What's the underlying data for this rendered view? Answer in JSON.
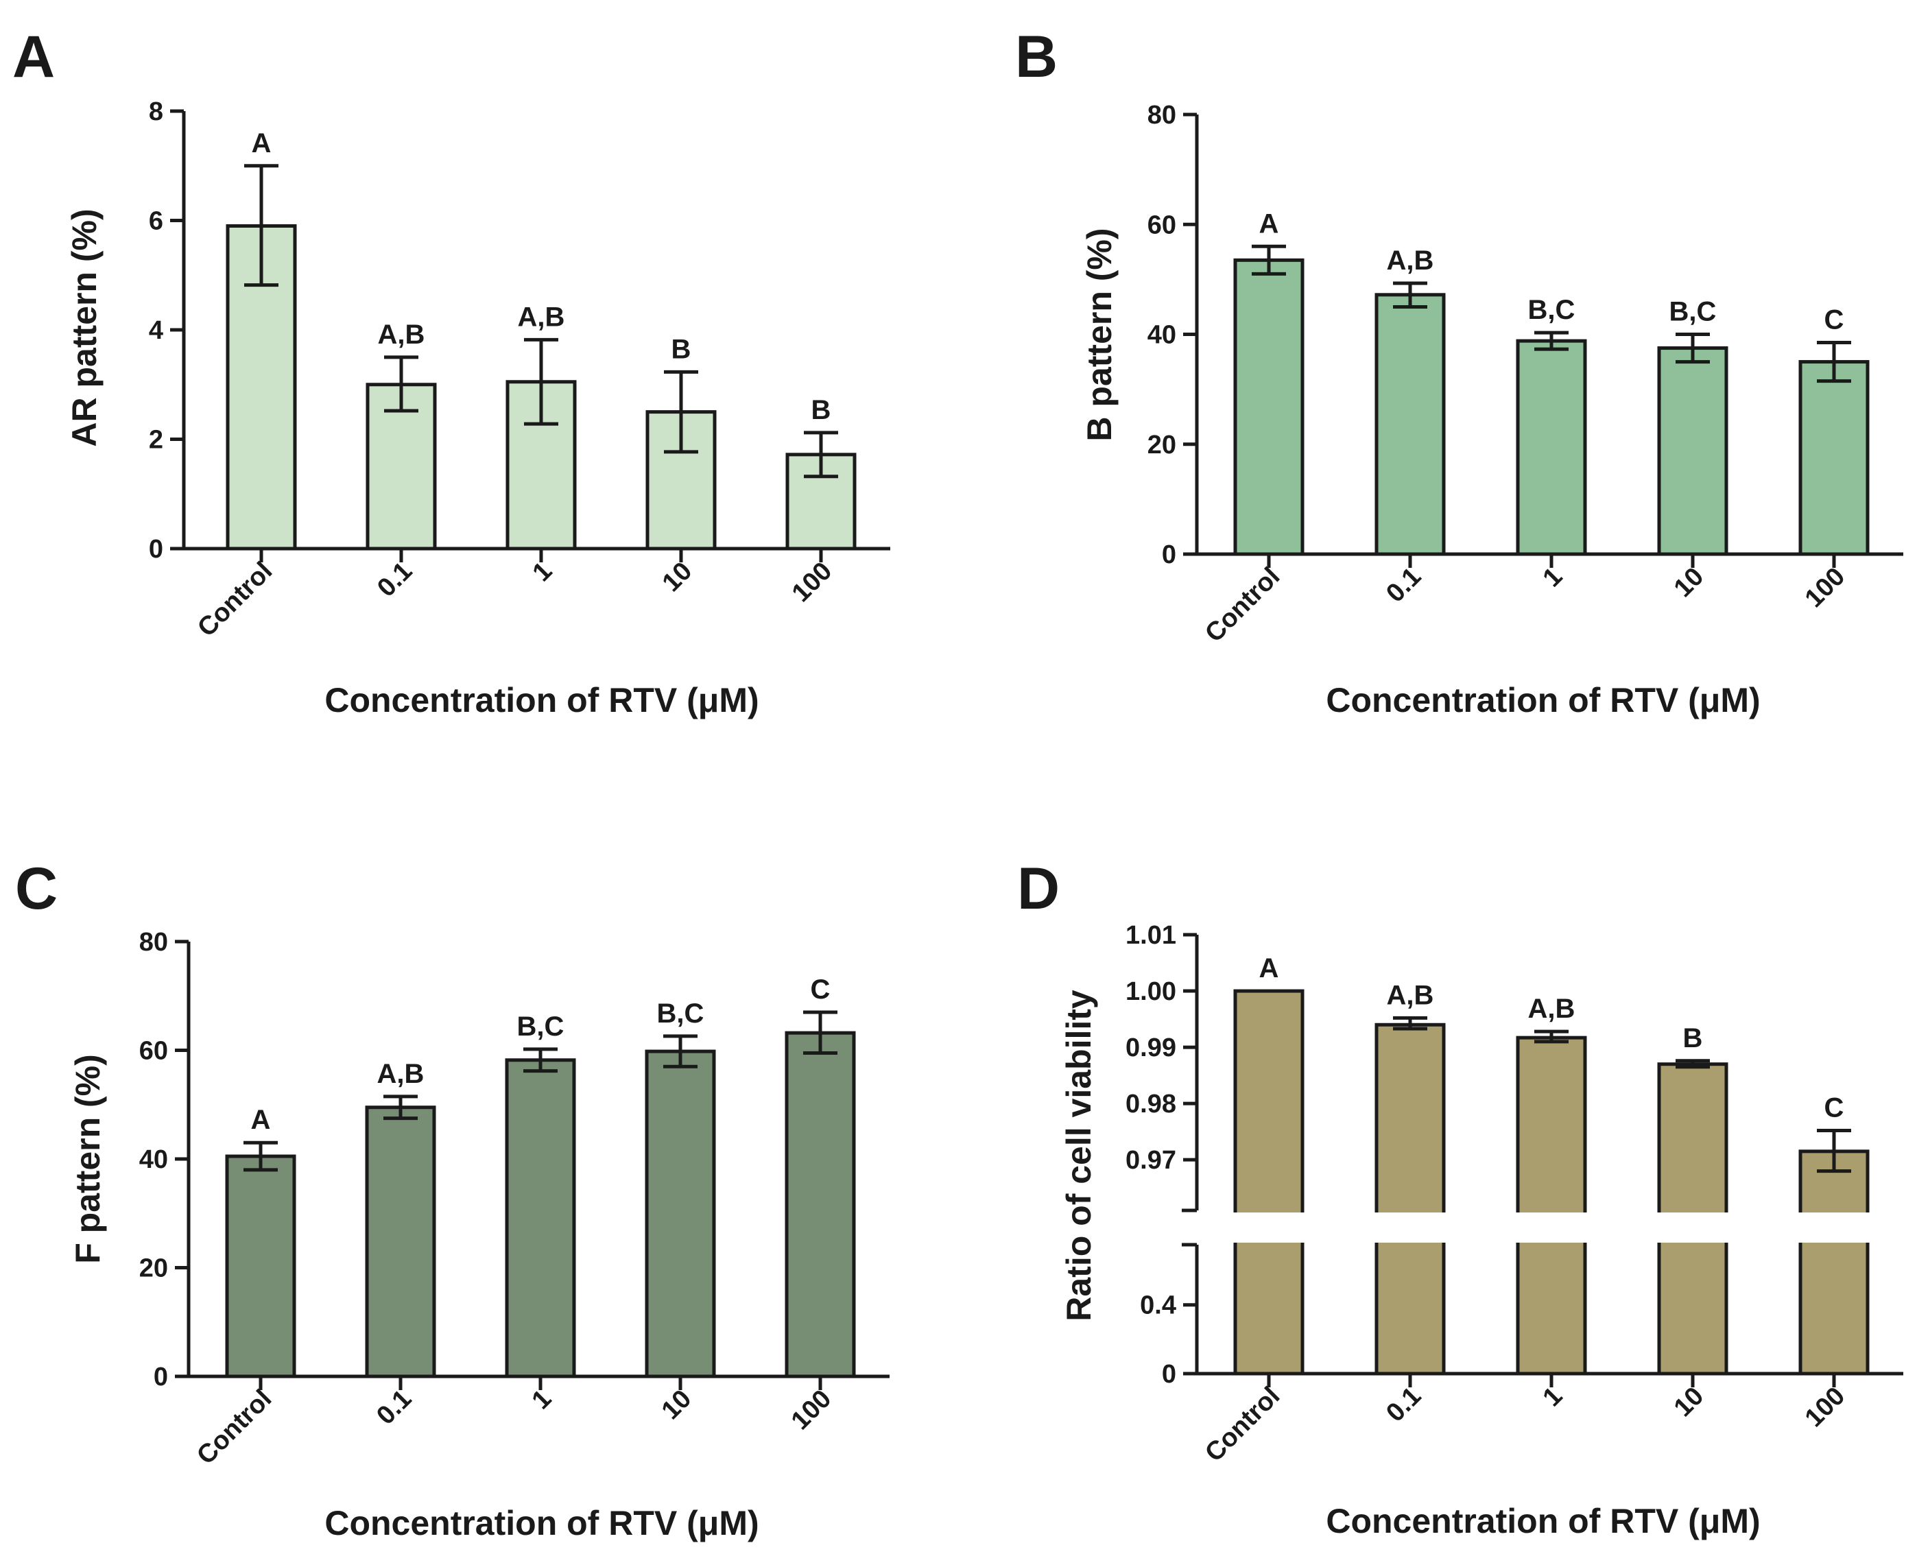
{
  "figure": {
    "panels": [
      "A",
      "B",
      "C",
      "D"
    ]
  },
  "chart_data": [
    {
      "panel": "A",
      "type": "bar",
      "title": "",
      "xlabel": "Concentration of RTV (μM)",
      "ylabel": "AR pattern (%)",
      "categories": [
        "Control",
        "0.1",
        "1",
        "10",
        "100"
      ],
      "values": [
        5.9,
        3.0,
        3.05,
        2.5,
        1.72
      ],
      "errors_low": [
        4.82,
        2.52,
        2.28,
        1.77,
        1.32
      ],
      "errors_high": [
        7.0,
        3.5,
        3.82,
        3.23,
        2.12
      ],
      "significance": [
        "A",
        "A,B",
        "A,B",
        "B",
        "B"
      ],
      "ylim": [
        0,
        8
      ],
      "yticks": [
        0,
        2,
        4,
        6,
        8
      ],
      "color": "#cde3c9"
    },
    {
      "panel": "B",
      "type": "bar",
      "title": "",
      "xlabel": "Concentration of RTV (μM)",
      "ylabel": "B pattern (%)",
      "categories": [
        "Control",
        "0.1",
        "1",
        "10",
        "100"
      ],
      "values": [
        53.5,
        47.2,
        38.8,
        37.5,
        35.0
      ],
      "errors_low": [
        51.0,
        45.0,
        37.3,
        35.0,
        31.5
      ],
      "errors_high": [
        56.0,
        49.3,
        40.3,
        40.0,
        38.5
      ],
      "significance": [
        "A",
        "A,B",
        "B,C",
        "B,C",
        "C"
      ],
      "ylim": [
        0,
        80
      ],
      "yticks": [
        0,
        20,
        40,
        60,
        80
      ],
      "color": "#8fc09a"
    },
    {
      "panel": "C",
      "type": "bar",
      "title": "",
      "xlabel": "Concentration of RTV (μM)",
      "ylabel": "F pattern (%)",
      "categories": [
        "Control",
        "0.1",
        "1",
        "10",
        "100"
      ],
      "values": [
        40.5,
        49.5,
        58.2,
        59.8,
        63.2
      ],
      "errors_low": [
        38.0,
        47.5,
        56.2,
        57.0,
        59.5
      ],
      "errors_high": [
        43.0,
        51.5,
        60.2,
        62.6,
        67.0
      ],
      "significance": [
        "A",
        "A,B",
        "B,C",
        "B,C",
        "C"
      ],
      "ylim": [
        0,
        80
      ],
      "yticks": [
        0,
        20,
        40,
        60,
        80
      ],
      "color": "#778d74"
    },
    {
      "panel": "D",
      "type": "bar",
      "title": "",
      "xlabel": "Concentration of RTV (μM)",
      "ylabel": "Ratio of cell viability",
      "categories": [
        "Control",
        "0.1",
        "1",
        "10",
        "100"
      ],
      "values": [
        1.0,
        0.994,
        0.9917,
        0.987,
        0.9715
      ],
      "errors_low": [
        1.0,
        0.9933,
        0.991,
        0.9865,
        0.968
      ],
      "errors_high": [
        1.0,
        0.9952,
        0.9928,
        0.9876,
        0.9752
      ],
      "significance": [
        "A",
        "A,B",
        "A,B",
        "B",
        "C"
      ],
      "axis_break": true,
      "ylim_lower": [
        0,
        0.75
      ],
      "yticks_lower": [
        0,
        0.4
      ],
      "ylim_upper": [
        0.961,
        1.01
      ],
      "yticks_upper": [
        0.97,
        0.98,
        0.99,
        1.0,
        1.01
      ],
      "ytick_labels_upper": [
        "0.97",
        "0.98",
        "0.99",
        "1.00",
        "1.01"
      ],
      "color": "#ab9e6e"
    }
  ]
}
